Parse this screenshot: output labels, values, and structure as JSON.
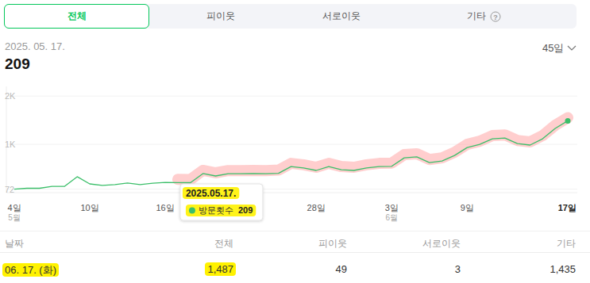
{
  "tabs": {
    "items": [
      "전체",
      "피이웃",
      "서로이웃",
      "기타"
    ],
    "selected": 0,
    "help_icon": "?"
  },
  "header": {
    "date": "2025. 05. 17.",
    "value": 209,
    "period": "45일"
  },
  "chart_data": {
    "type": "line",
    "categories": [
      "4일",
      null,
      null,
      null,
      null,
      null,
      "10일",
      null,
      null,
      null,
      null,
      null,
      "16일",
      null,
      null,
      null,
      null,
      null,
      null,
      null,
      null,
      null,
      null,
      null,
      "28일",
      null,
      null,
      null,
      null,
      null,
      "3일",
      null,
      null,
      null,
      null,
      null,
      "9일",
      null,
      null,
      null,
      null,
      null,
      null,
      null,
      "17일"
    ],
    "category_months": [
      "5월",
      null,
      null,
      null,
      null,
      null,
      null,
      null,
      null,
      null,
      null,
      null,
      null,
      null,
      null,
      null,
      null,
      null,
      null,
      null,
      null,
      null,
      null,
      null,
      null,
      null,
      null,
      null,
      null,
      null,
      "6월",
      null,
      null,
      null,
      null,
      null,
      null,
      null,
      null,
      null,
      null,
      null,
      null,
      null,
      null
    ],
    "series": [
      {
        "name": "방문횟수",
        "color": "#3cbf6a",
        "marker": "last",
        "values": [
          72,
          90,
          90,
          130,
          130,
          330,
          180,
          150,
          165,
          200,
          165,
          195,
          210,
          209,
          205,
          395,
          345,
          390,
          390,
          395,
          390,
          400,
          540,
          510,
          460,
          540,
          475,
          460,
          510,
          540,
          545,
          720,
          740,
          620,
          655,
          770,
          935,
          1000,
          1115,
          1130,
          1015,
          985,
          1115,
          1330,
          1487
        ]
      }
    ],
    "ylim": [
      0,
      2200
    ],
    "yticks": [
      72,
      {
        "value": 1000,
        "label": "1K"
      },
      {
        "value": 2000,
        "label": "2K"
      }
    ],
    "grid": true,
    "tooltip": {
      "index": 13,
      "date": "2025.05.17."
    }
  },
  "table": {
    "header": [
      "날짜",
      "전체",
      "피이웃",
      "서로이웃",
      "기타"
    ],
    "rows": [
      [
        "06. 17. (화)",
        "1,487",
        "49",
        "3",
        "1,435"
      ]
    ]
  }
}
